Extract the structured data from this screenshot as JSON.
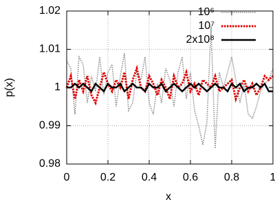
{
  "chart_data": {
    "type": "line",
    "xlabel": "x",
    "ylabel": "p(x)",
    "x": [
      0,
      0.02,
      0.04,
      0.06,
      0.08,
      0.1,
      0.12,
      0.14,
      0.16,
      0.18,
      0.2,
      0.22,
      0.24,
      0.26,
      0.28,
      0.3,
      0.32,
      0.34,
      0.36,
      0.38,
      0.4,
      0.42,
      0.44,
      0.46,
      0.48,
      0.5,
      0.52,
      0.54,
      0.56,
      0.58,
      0.6,
      0.62,
      0.64,
      0.66,
      0.68,
      0.7,
      0.72,
      0.74,
      0.76,
      0.78,
      0.8,
      0.82,
      0.84,
      0.86,
      0.88,
      0.9,
      0.92,
      0.94,
      0.96,
      0.98,
      1
    ],
    "series": [
      {
        "name": "10⁶",
        "color": "#888888",
        "values": [
          1.007,
          1.005,
          0.993,
          1.008,
          1.006,
          0.996,
          1.003,
          0.999,
          1.008,
          0.998,
          1.004,
          1.006,
          0.995,
          1.003,
          1.009,
          0.994,
          0.996,
          1.004,
          1.002,
          1.008,
          0.996,
          0.993,
          1.001,
          0.996,
          1.005,
          1.002,
          0.995,
          1.004,
          1.008,
          0.997,
          1.004,
          0.994,
          0.99,
          0.985,
          0.991,
          1.016,
          0.984,
          1.004,
          1.0,
          1.004,
          1.008,
          1.002,
          0.996,
          1.001,
          0.993,
          0.992,
          0.995,
          0.999,
          1.001,
          1.002,
          1.005
        ]
      },
      {
        "name": "10⁷",
        "color": "#e00000",
        "values": [
          1.0,
          1.003,
          0.997,
          1.002,
          0.999,
          1.003,
          0.998,
          0.996,
          1.0,
          1.004,
          1.001,
          0.999,
          1.002,
          1.0,
          1.004,
          0.997,
          1.002,
          1.005,
          1.0,
          0.999,
          1.003,
          1.001,
          0.998,
          1.002,
          1.0,
          0.997,
          1.003,
          1.0,
          1.001,
          1.004,
          0.999,
          1.001,
          0.998,
          1.002,
          1.001,
          1.0,
          1.003,
          0.999,
          1.0,
          1.001,
          1.002,
          0.997,
          1.0,
          1.002,
          0.999,
          1.001,
          0.998,
          1.0,
          1.003,
          1.002,
          1.003
        ]
      },
      {
        "name": "2x10⁸",
        "color": "#000000",
        "values": [
          1.0,
          1.0,
          1.001,
          1.0,
          1.001,
          1.0,
          0.999,
          1.001,
          1.0,
          0.999,
          1.001,
          1.0,
          1.0,
          1.001,
          0.999,
          1.0,
          1.001,
          1.0,
          1.0,
          0.999,
          1.001,
          1.0,
          1.0,
          1.001,
          0.999,
          1.0,
          1.001,
          1.0,
          0.999,
          1.0,
          1.001,
          1.0,
          1.001,
          1.0,
          0.999,
          1.0,
          1.001,
          1.0,
          1.0,
          0.999,
          1.001,
          1.0,
          1.001,
          0.999,
          1.0,
          1.0,
          1.001,
          1.0,
          1.001,
          0.999,
          0.999
        ]
      }
    ],
    "xlim": [
      0,
      1
    ],
    "xticks": [
      0,
      0.2,
      0.4,
      0.6,
      0.8,
      1
    ],
    "ylim": [
      0.98,
      1.02
    ],
    "yticks": [
      0.98,
      0.99,
      1,
      1.01,
      1.02
    ],
    "grid": true,
    "legend": "upper right"
  }
}
